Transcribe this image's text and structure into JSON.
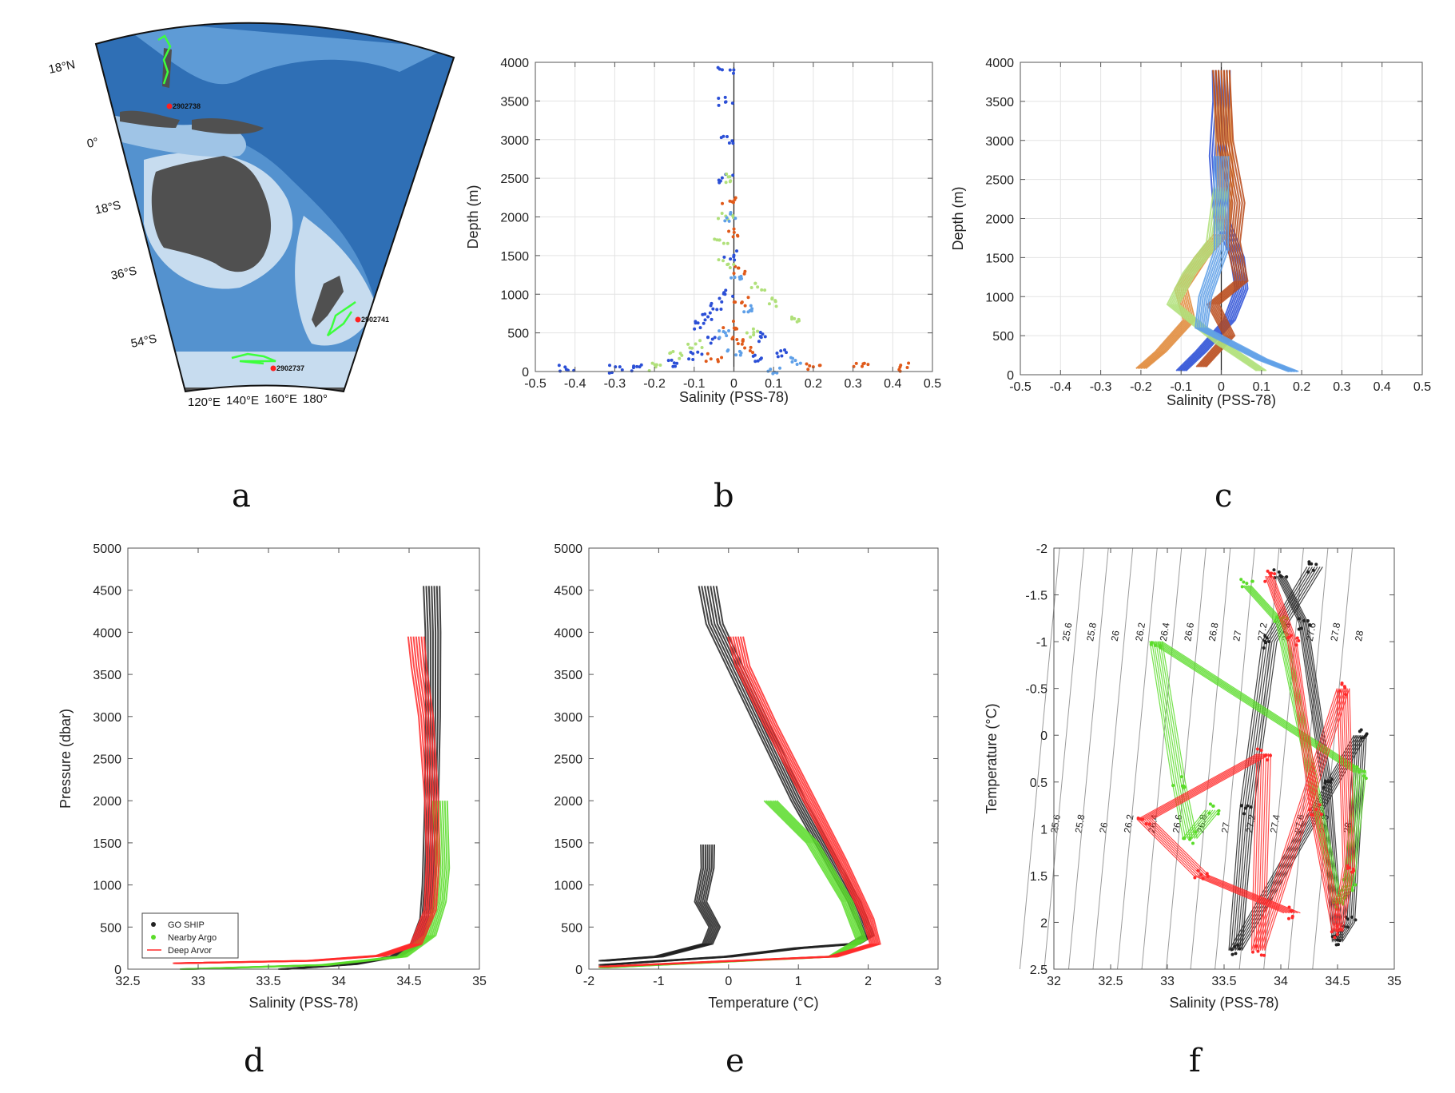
{
  "panel_letters": [
    "a",
    "b",
    "c",
    "d",
    "e",
    "f"
  ],
  "map": {
    "lat_labels": [
      "18°N",
      "0°",
      "18°S",
      "36°S",
      "54°S"
    ],
    "lon_labels": [
      "120°E",
      "140°E",
      "160°E",
      "180°"
    ],
    "float_ids": [
      "2902738",
      "2902741",
      "2902737"
    ],
    "colors": {
      "ocean_deep": "#2f6fb5",
      "ocean_mid": "#5e9bd6",
      "shelf": "#c7dcef",
      "land": "#505050",
      "track": "#3cff3c",
      "deploy": "#ff2020"
    }
  },
  "chart_data": [
    {
      "id": "b",
      "type": "scatter",
      "xlabel": "Salinity (PSS-78)",
      "ylabel": "Depth (m)",
      "xlim": [
        -0.5,
        0.5
      ],
      "ylim": [
        4000,
        0
      ],
      "xticks": [
        -0.5,
        -0.4,
        -0.3,
        -0.2,
        -0.1,
        0,
        0.1,
        0.2,
        0.3,
        0.4,
        0.5
      ],
      "yticks": [
        0,
        500,
        1000,
        1500,
        2000,
        2500,
        3000,
        3500,
        4000
      ],
      "grid": true,
      "zero_line": true,
      "series": [
        {
          "color": "#2b4fd6",
          "points": [
            [
              -0.42,
              20
            ],
            [
              -0.3,
              40
            ],
            [
              -0.25,
              60
            ],
            [
              -0.15,
              100
            ],
            [
              -0.1,
              200
            ],
            [
              0.05,
              160
            ],
            [
              0.12,
              230
            ],
            [
              -0.05,
              400
            ],
            [
              0.08,
              450
            ],
            [
              -0.08,
              600
            ],
            [
              -0.06,
              700
            ],
            [
              -0.04,
              850
            ],
            [
              -0.02,
              1000
            ],
            [
              -0.01,
              1500
            ],
            [
              -0.02,
              2500
            ],
            [
              -0.02,
              3000
            ],
            [
              -0.02,
              3500
            ],
            [
              -0.02,
              3900
            ]
          ]
        },
        {
          "color": "#e05a1a",
          "points": [
            [
              0.2,
              40
            ],
            [
              0.32,
              50
            ],
            [
              0.42,
              55
            ],
            [
              -0.05,
              180
            ],
            [
              0.03,
              300
            ],
            [
              0.01,
              450
            ],
            [
              -0.01,
              600
            ],
            [
              0.02,
              900
            ],
            [
              0.01,
              1300
            ],
            [
              0.0,
              1800
            ],
            [
              -0.01,
              2200
            ]
          ]
        },
        {
          "color": "#b0e07a",
          "points": [
            [
              -0.2,
              60
            ],
            [
              -0.15,
              200
            ],
            [
              -0.1,
              350
            ],
            [
              0.05,
              500
            ],
            [
              0.15,
              700
            ],
            [
              0.1,
              900
            ],
            [
              0.06,
              1100
            ],
            [
              -0.02,
              1400
            ],
            [
              -0.03,
              1700
            ],
            [
              -0.02,
              2000
            ],
            [
              -0.01,
              2500
            ]
          ]
        },
        {
          "color": "#5fa0e8",
          "points": [
            [
              0.1,
              30
            ],
            [
              0.15,
              120
            ],
            [
              0.0,
              250
            ],
            [
              -0.03,
              500
            ],
            [
              0.03,
              800
            ],
            [
              0.0,
              1200
            ],
            [
              -0.01,
              2000
            ]
          ]
        }
      ]
    },
    {
      "id": "c",
      "type": "line",
      "xlabel": "Salinity (PSS-78)",
      "ylabel": "Depth (m)",
      "xlim": [
        -0.5,
        0.5
      ],
      "ylim": [
        4000,
        0
      ],
      "xticks": [
        -0.5,
        -0.4,
        -0.3,
        -0.2,
        -0.1,
        0,
        0.1,
        0.2,
        0.3,
        0.4,
        0.5
      ],
      "yticks": [
        0,
        500,
        1000,
        1500,
        2000,
        2500,
        3000,
        3500,
        4000
      ],
      "grid": true,
      "zero_line": true,
      "series": [
        {
          "color": "#2b4fd6",
          "points": [
            [
              -0.1,
              50
            ],
            [
              -0.05,
              300
            ],
            [
              0.02,
              700
            ],
            [
              0.05,
              1100
            ],
            [
              0.04,
              1500
            ],
            [
              0.0,
              2000
            ],
            [
              -0.01,
              2800
            ],
            [
              0.0,
              3500
            ],
            [
              0.0,
              3900
            ]
          ]
        },
        {
          "color": "#e08a3a",
          "points": [
            [
              -0.2,
              80
            ],
            [
              -0.15,
              300
            ],
            [
              -0.08,
              700
            ],
            [
              -0.1,
              1100
            ],
            [
              -0.05,
              1500
            ],
            [
              0.0,
              1800
            ],
            [
              0.01,
              2500
            ],
            [
              0.0,
              3900
            ]
          ]
        },
        {
          "color": "#b84a1a",
          "points": [
            [
              -0.05,
              100
            ],
            [
              0.02,
              500
            ],
            [
              -0.02,
              900
            ],
            [
              0.05,
              1200
            ],
            [
              0.03,
              1700
            ],
            [
              0.04,
              2200
            ],
            [
              0.01,
              3000
            ],
            [
              0.0,
              3900
            ]
          ]
        },
        {
          "color": "#b0e07a",
          "points": [
            [
              0.1,
              50
            ],
            [
              0.0,
              400
            ],
            [
              -0.12,
              900
            ],
            [
              -0.08,
              1300
            ],
            [
              -0.02,
              1700
            ],
            [
              0.0,
              2400
            ]
          ]
        },
        {
          "color": "#5fa0e8",
          "points": [
            [
              0.18,
              40
            ],
            [
              0.1,
              200
            ],
            [
              -0.05,
              600
            ],
            [
              -0.04,
              1000
            ],
            [
              0.0,
              1600
            ],
            [
              0.0,
              2800
            ]
          ]
        }
      ]
    },
    {
      "id": "d",
      "type": "line",
      "xlabel": "Salinity (PSS-78)",
      "ylabel": "Pressure (dbar)",
      "xlim": [
        32.5,
        35
      ],
      "ylim": [
        5000,
        0
      ],
      "xticks": [
        32.5,
        33,
        33.5,
        34,
        34.5,
        35
      ],
      "yticks": [
        0,
        500,
        1000,
        1500,
        2000,
        2500,
        3000,
        3500,
        4000,
        4500,
        5000
      ],
      "grid": false,
      "legend": {
        "placement": "bottom-left",
        "entries": [
          "GO SHIP",
          "Nearby Argo",
          "Deep Arvor"
        ]
      },
      "series": [
        {
          "name": "GO SHIP",
          "color": "#222222",
          "points": [
            [
              33.6,
              0
            ],
            [
              34.1,
              60
            ],
            [
              34.4,
              150
            ],
            [
              34.55,
              300
            ],
            [
              34.62,
              600
            ],
            [
              34.64,
              1000
            ],
            [
              34.66,
              2000
            ],
            [
              34.67,
              3000
            ],
            [
              34.67,
              4000
            ],
            [
              34.66,
              4550
            ]
          ]
        },
        {
          "name": "Nearby Argo",
          "color": "#5bdc2a",
          "points": [
            [
              32.9,
              0
            ],
            [
              33.9,
              50
            ],
            [
              34.45,
              150
            ],
            [
              34.65,
              400
            ],
            [
              34.72,
              800
            ],
            [
              34.74,
              1200
            ],
            [
              34.73,
              1600
            ],
            [
              34.72,
              2000
            ]
          ]
        },
        {
          "name": "Deep Arvor",
          "color": "#ff2a2a",
          "points": [
            [
              32.85,
              70
            ],
            [
              33.8,
              100
            ],
            [
              34.3,
              160
            ],
            [
              34.55,
              300
            ],
            [
              34.65,
              700
            ],
            [
              34.67,
              1300
            ],
            [
              34.66,
              2000
            ],
            [
              34.62,
              3000
            ],
            [
              34.57,
              3600
            ],
            [
              34.55,
              3950
            ]
          ]
        }
      ]
    },
    {
      "id": "e",
      "type": "line",
      "xlabel": "Temperature (°C)",
      "ylabel": "",
      "xlim": [
        -2,
        3
      ],
      "ylim": [
        5000,
        0
      ],
      "xticks": [
        -2,
        -1,
        0,
        1,
        2,
        3
      ],
      "yticks": [
        0,
        500,
        1000,
        1500,
        2000,
        2500,
        3000,
        3500,
        4000,
        4500,
        5000
      ],
      "grid": false,
      "series": [
        {
          "color": "#222222",
          "points": [
            [
              -1.8,
              50
            ],
            [
              0.0,
              150
            ],
            [
              1.0,
              250
            ],
            [
              1.8,
              300
            ],
            [
              2.0,
              400
            ],
            [
              1.8,
              800
            ],
            [
              1.4,
              1400
            ],
            [
              1.0,
              2000
            ],
            [
              0.6,
              2700
            ],
            [
              0.2,
              3400
            ],
            [
              -0.2,
              4100
            ],
            [
              -0.3,
              4550
            ]
          ]
        },
        {
          "color": "#222222",
          "points": [
            [
              -1.8,
              100
            ],
            [
              -1.0,
              150
            ],
            [
              -0.3,
              300
            ],
            [
              -0.2,
              500
            ],
            [
              -0.4,
              800
            ],
            [
              -0.3,
              1200
            ],
            [
              -0.3,
              1480
            ]
          ]
        },
        {
          "color": "#5bdc2a",
          "points": [
            [
              -1.8,
              20
            ],
            [
              1.5,
              150
            ],
            [
              1.9,
              350
            ],
            [
              1.7,
              800
            ],
            [
              1.2,
              1500
            ],
            [
              0.6,
              2000
            ]
          ]
        },
        {
          "color": "#ff2a2a",
          "points": [
            [
              -1.8,
              30
            ],
            [
              1.5,
              150
            ],
            [
              2.1,
              300
            ],
            [
              2.0,
              600
            ],
            [
              1.6,
              1300
            ],
            [
              1.1,
              2100
            ],
            [
              0.6,
              2900
            ],
            [
              0.2,
              3600
            ],
            [
              0.1,
              3950
            ]
          ]
        }
      ]
    },
    {
      "id": "f",
      "type": "scatter",
      "xlabel": "Salinity (PSS-78)",
      "ylabel": "Temperature (°C)",
      "xlim": [
        32,
        35
      ],
      "ylim": [
        -2,
        2.5
      ],
      "xticks": [
        32,
        32.5,
        33,
        33.5,
        34,
        34.5,
        35
      ],
      "yticks": [
        -2,
        -1.5,
        -1,
        -0.5,
        0,
        0.5,
        1,
        1.5,
        2,
        2.5
      ],
      "grid": false,
      "isopycnal_labels": [
        "25.6",
        "25.8",
        "26",
        "26.2",
        "26.4",
        "26.6",
        "26.8",
        "27",
        "27.2",
        "27.4",
        "27.6",
        "27.8",
        "28"
      ],
      "series": [
        {
          "color": "#222222",
          "points": [
            [
              34.0,
              -1.7
            ],
            [
              34.2,
              -1.2
            ],
            [
              34.4,
              0.5
            ],
            [
              34.5,
              2.2
            ],
            [
              34.6,
              2.0
            ],
            [
              34.7,
              0.0
            ],
            [
              33.6,
              2.3
            ],
            [
              33.7,
              0.8
            ],
            [
              33.9,
              -1.0
            ],
            [
              34.3,
              -1.8
            ]
          ]
        },
        {
          "color": "#5bdc2a",
          "points": [
            [
              33.7,
              -1.6
            ],
            [
              34.0,
              -1.2
            ],
            [
              34.5,
              1.8
            ],
            [
              34.6,
              1.6
            ],
            [
              34.7,
              0.4
            ],
            [
              32.9,
              -1.0
            ],
            [
              33.1,
              0.5
            ],
            [
              33.2,
              1.1
            ],
            [
              33.4,
              0.8
            ]
          ]
        },
        {
          "color": "#ff2a2a",
          "points": [
            [
              33.9,
              -1.7
            ],
            [
              34.1,
              -1.0
            ],
            [
              34.3,
              0.8
            ],
            [
              34.5,
              2.1
            ],
            [
              34.6,
              1.4
            ],
            [
              34.55,
              -0.5
            ],
            [
              33.8,
              2.3
            ],
            [
              33.85,
              0.2
            ],
            [
              32.8,
              0.9
            ],
            [
              33.3,
              1.5
            ],
            [
              34.1,
              1.9
            ]
          ]
        }
      ]
    }
  ]
}
